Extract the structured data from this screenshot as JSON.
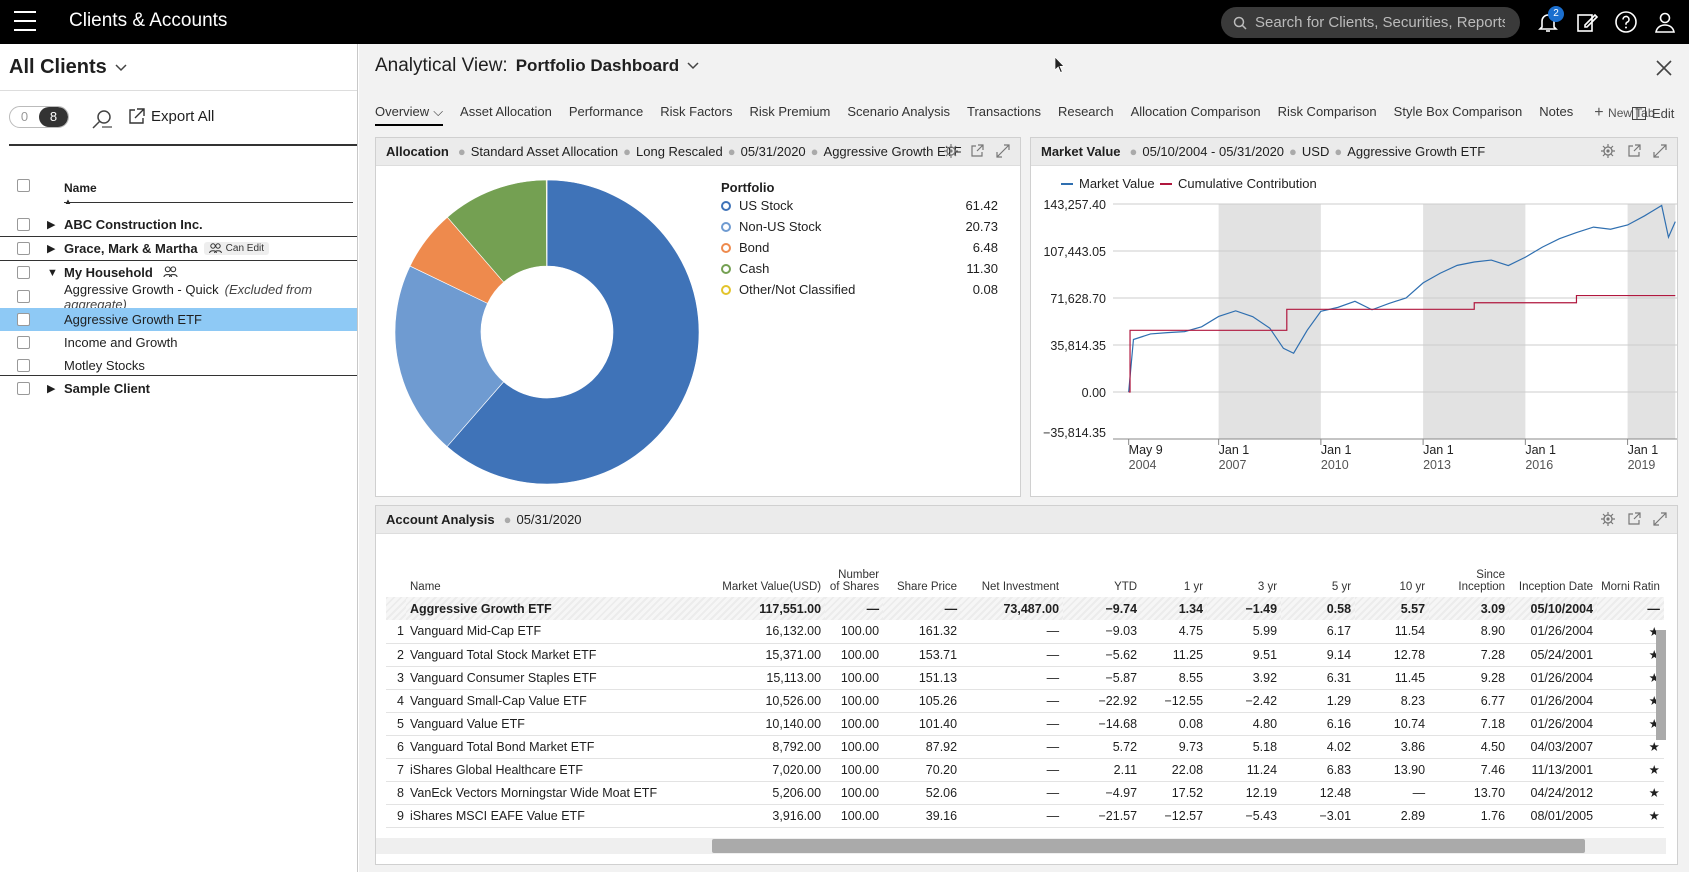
{
  "app": {
    "title": "Clients & Accounts",
    "notification_count": "2",
    "search_placeholder": "Search for Clients, Securities, Reports, a"
  },
  "sidebar": {
    "all_clients_label": "All Clients",
    "toggle": [
      "0",
      "8"
    ],
    "export_label": "Export All",
    "name_header": "Name",
    "rows": [
      {
        "label": "ABC Construction Inc.",
        "bold": true,
        "expand": "▶"
      },
      {
        "label": "Grace, Mark & Martha",
        "bold": true,
        "expand": "▶",
        "tag": "Can Edit"
      },
      {
        "label": "My Household",
        "bold": true,
        "expand": "▼"
      },
      {
        "label": "Aggressive Growth - Quick",
        "note": "(Excluded from aggregate)"
      },
      {
        "label": "Aggressive Growth ETF",
        "selected": true
      },
      {
        "label": "Income and Growth"
      },
      {
        "label": "Motley Stocks"
      },
      {
        "label": "Sample Client",
        "bold": true,
        "expand": "▶"
      }
    ]
  },
  "view": {
    "label": "Analytical View:",
    "name": "Portfolio Dashboard",
    "tabs": [
      "Overview",
      "Asset Allocation",
      "Performance",
      "Risk Factors",
      "Risk Premium",
      "Scenario Analysis",
      "Transactions",
      "Research",
      "Allocation Comparison",
      "Risk Comparison",
      "Style Box Comparison",
      "Notes"
    ],
    "new_tab": "New Tab",
    "edit": "Edit"
  },
  "allocation_panel": {
    "title": "Allocation",
    "crumbs": [
      "Standard Asset Allocation",
      "Long Rescaled",
      "05/31/2020",
      "Aggressive Growth ETF"
    ],
    "legend_title": "Portfolio",
    "colors": {
      "US Stock": "#3f73b8",
      "Non-US Stock": "#6f9bd1",
      "Bond": "#ee8a4d",
      "Cash": "#74a052",
      "Other/Not Classified": "#e3c42b"
    }
  },
  "market_panel": {
    "title": "Market Value",
    "crumbs": [
      "05/10/2004 - 05/31/2020",
      "USD",
      "Aggressive Growth ETF"
    ],
    "legend": [
      {
        "name": "Market Value",
        "color": "#2f6fb0"
      },
      {
        "name": "Cumulative Contribution",
        "color": "#b0173e"
      }
    ]
  },
  "chart_data": [
    {
      "type": "pie",
      "title": "Portfolio",
      "categories": [
        "US Stock",
        "Non-US Stock",
        "Bond",
        "Cash",
        "Other/Not Classified"
      ],
      "values": [
        61.42,
        20.73,
        6.48,
        11.3,
        0.08
      ],
      "value_labels": [
        "61.42",
        "20.73",
        "6.48",
        "11.30",
        "0.08"
      ]
    },
    {
      "type": "line",
      "title": "Market Value",
      "y_ticks": [
        "143,257.40",
        "107,443.05",
        "71,628.70",
        "35,814.35",
        "0.00",
        "−35,814.35"
      ],
      "x_ticks": [
        [
          "May 9",
          "2004"
        ],
        [
          "Jan 1",
          "2007"
        ],
        [
          "Jan 1",
          "2010"
        ],
        [
          "Jan 1",
          "2013"
        ],
        [
          "Jan 1",
          "2016"
        ],
        [
          "Jan 1",
          "2019"
        ]
      ],
      "ylim": [
        -35814.35,
        143257.4
      ],
      "series": [
        {
          "name": "Market Value",
          "x": [
            2004.36,
            2004.5,
            2005,
            2005.5,
            2006,
            2006.5,
            2007,
            2007.5,
            2008,
            2008.5,
            2008.9,
            2009.2,
            2009.6,
            2010,
            2010.5,
            2011,
            2011.5,
            2012,
            2012.5,
            2013,
            2013.5,
            2014,
            2014.5,
            2015,
            2015.5,
            2016,
            2016.5,
            2017,
            2017.5,
            2018,
            2018.5,
            2019,
            2019.5,
            2020,
            2020.2,
            2020.4
          ],
          "y": [
            0,
            40000,
            42000,
            45000,
            48000,
            52000,
            58000,
            60000,
            55000,
            48000,
            35000,
            32000,
            48000,
            60000,
            62000,
            68000,
            64000,
            70000,
            73000,
            82000,
            88000,
            95000,
            100000,
            103000,
            98000,
            102000,
            108000,
            115000,
            122000,
            128000,
            126000,
            127000,
            132000,
            140000,
            118000,
            132000
          ]
        },
        {
          "name": "Cumulative Contribution",
          "x": [
            2004.36,
            2004.4,
            2005,
            2006,
            2007,
            2008,
            2008.9,
            2009.0,
            2010,
            2011,
            2012,
            2013,
            2014,
            2014.5,
            2015,
            2016,
            2017,
            2017.5,
            2018,
            2019,
            2020,
            2020.4
          ],
          "y": [
            0,
            47000,
            47000,
            47000,
            47000,
            47000,
            47000,
            63000,
            63000,
            63000,
            63000,
            63000,
            63000,
            68000,
            68000,
            68000,
            68000,
            73487,
            73487,
            73487,
            73487,
            73487
          ]
        }
      ],
      "shaded_ranges": [
        [
          2007,
          2010
        ],
        [
          2013,
          2016
        ],
        [
          2019,
          2020.4
        ]
      ]
    }
  ],
  "account_panel": {
    "title": "Account Analysis",
    "date": "05/31/2020",
    "headers": [
      "Name",
      "Market Value(USD)",
      "Number of Shares",
      "Share Price",
      "Net Investment",
      "YTD",
      "1 yr",
      "3 yr",
      "5 yr",
      "10 yr",
      "Since Inception",
      "Inception Date",
      "Morni Ratin"
    ],
    "aggregate": [
      "Aggressive Growth ETF",
      "117,551.00",
      "—",
      "—",
      "73,487.00",
      "−9.74",
      "1.34",
      "−1.49",
      "0.58",
      "5.57",
      "3.09",
      "05/10/2004",
      "—"
    ],
    "rows": [
      [
        "1",
        "Vanguard Mid-Cap ETF",
        "16,132.00",
        "100.00",
        "161.32",
        "—",
        "−9.03",
        "4.75",
        "5.99",
        "6.17",
        "11.54",
        "8.90",
        "01/26/2004",
        "★"
      ],
      [
        "2",
        "Vanguard Total Stock Market ETF",
        "15,371.00",
        "100.00",
        "153.71",
        "—",
        "−5.62",
        "11.25",
        "9.51",
        "9.14",
        "12.78",
        "7.28",
        "05/24/2001",
        "★"
      ],
      [
        "3",
        "Vanguard Consumer Staples ETF",
        "15,113.00",
        "100.00",
        "151.13",
        "—",
        "−5.87",
        "8.55",
        "3.92",
        "6.31",
        "11.45",
        "9.28",
        "01/26/2004",
        "★"
      ],
      [
        "4",
        "Vanguard Small-Cap Value ETF",
        "10,526.00",
        "100.00",
        "105.26",
        "—",
        "−22.92",
        "−12.55",
        "−2.42",
        "1.29",
        "8.23",
        "6.77",
        "01/26/2004",
        "★"
      ],
      [
        "5",
        "Vanguard Value ETF",
        "10,140.00",
        "100.00",
        "101.40",
        "—",
        "−14.68",
        "0.08",
        "4.80",
        "6.16",
        "10.74",
        "7.18",
        "01/26/2004",
        "★"
      ],
      [
        "6",
        "Vanguard Total Bond Market ETF",
        "8,792.00",
        "100.00",
        "87.92",
        "—",
        "5.72",
        "9.73",
        "5.18",
        "4.02",
        "3.86",
        "4.50",
        "04/03/2007",
        "★"
      ],
      [
        "7",
        "iShares Global Healthcare ETF",
        "7,020.00",
        "100.00",
        "70.20",
        "—",
        "2.11",
        "22.08",
        "11.24",
        "6.83",
        "13.90",
        "7.46",
        "11/13/2001",
        "★"
      ],
      [
        "8",
        "VanEck Vectors Morningstar Wide Moat ETF",
        "5,206.00",
        "100.00",
        "52.06",
        "—",
        "−4.97",
        "17.52",
        "12.19",
        "12.48",
        "—",
        "13.70",
        "04/24/2012",
        "★"
      ],
      [
        "9",
        "iShares MSCI EAFE Value ETF",
        "3,916.00",
        "100.00",
        "39.16",
        "—",
        "−21.57",
        "−12.57",
        "−5.43",
        "−3.01",
        "2.89",
        "1.76",
        "08/01/2005",
        "★"
      ]
    ]
  }
}
